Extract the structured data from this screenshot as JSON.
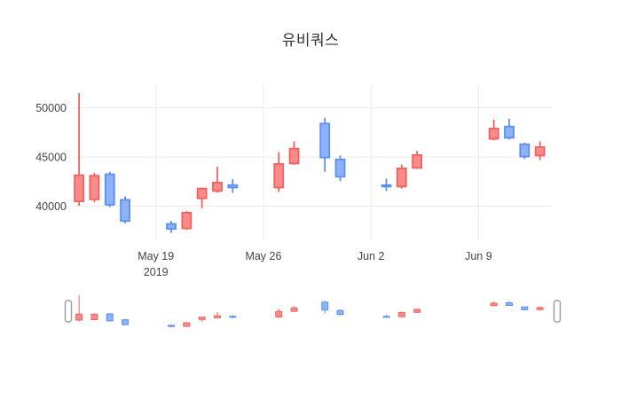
{
  "chart_data": {
    "type": "candlestick",
    "title": "유비쿼스",
    "x_axis": {
      "epoch": "2019-05-13",
      "min": "2019-05-13T15:30:00",
      "max": "2019-06-13T18:30:00",
      "ticks": [
        {
          "date": "2019-05-19",
          "label": "May 19",
          "sublabel": "2019"
        },
        {
          "date": "2019-05-26",
          "label": "May 26",
          "sublabel": ""
        },
        {
          "date": "2019-06-02",
          "label": "Jun 2",
          "sublabel": ""
        },
        {
          "date": "2019-06-09",
          "label": "Jun 9",
          "sublabel": ""
        }
      ]
    },
    "y_axis": {
      "min": 36450,
      "max": 52400,
      "ticks": [
        40000,
        45000,
        50000
      ]
    },
    "rangeslider": {
      "y_min": 37000,
      "y_max": 51800
    },
    "grid": true,
    "legend": "none",
    "ohlc": [
      {
        "date": "2019-05-14",
        "open": 40500,
        "high": 51500,
        "low": 40050,
        "close": 43150
      },
      {
        "date": "2019-05-15",
        "open": 40700,
        "high": 43400,
        "low": 40400,
        "close": 43100
      },
      {
        "date": "2019-05-16",
        "open": 43250,
        "high": 43500,
        "low": 39900,
        "close": 40150
      },
      {
        "date": "2019-05-17",
        "open": 40650,
        "high": 41000,
        "low": 38250,
        "close": 38500
      },
      {
        "date": "2019-05-20",
        "open": 38200,
        "high": 38500,
        "low": 37300,
        "close": 37700
      },
      {
        "date": "2019-05-21",
        "open": 37750,
        "high": 39500,
        "low": 37600,
        "close": 39350
      },
      {
        "date": "2019-05-22",
        "open": 40800,
        "high": 41900,
        "low": 39800,
        "close": 41800
      },
      {
        "date": "2019-05-23",
        "open": 41550,
        "high": 44000,
        "low": 41400,
        "close": 42400
      },
      {
        "date": "2019-05-24",
        "open": 42150,
        "high": 42750,
        "low": 41350,
        "close": 41900
      },
      {
        "date": "2019-05-27",
        "open": 41900,
        "high": 45500,
        "low": 41450,
        "close": 44300
      },
      {
        "date": "2019-05-28",
        "open": 44350,
        "high": 46600,
        "low": 44200,
        "close": 45850
      },
      {
        "date": "2019-05-30",
        "open": 48400,
        "high": 49000,
        "low": 43500,
        "close": 44950
      },
      {
        "date": "2019-05-31",
        "open": 44750,
        "high": 45150,
        "low": 42550,
        "close": 43000
      },
      {
        "date": "2019-06-03",
        "open": 42150,
        "high": 42800,
        "low": 41550,
        "close": 42000
      },
      {
        "date": "2019-06-04",
        "open": 42000,
        "high": 44250,
        "low": 41800,
        "close": 43850
      },
      {
        "date": "2019-06-05",
        "open": 43900,
        "high": 45600,
        "low": 43800,
        "close": 45200
      },
      {
        "date": "2019-06-10",
        "open": 46850,
        "high": 48800,
        "low": 46700,
        "close": 47900
      },
      {
        "date": "2019-06-11",
        "open": 48100,
        "high": 48900,
        "low": 46800,
        "close": 46950
      },
      {
        "date": "2019-06-12",
        "open": 46300,
        "high": 46450,
        "low": 44800,
        "close": 45050
      },
      {
        "date": "2019-06-13",
        "open": 45150,
        "high": 46600,
        "low": 44700,
        "close": 46000
      }
    ],
    "colors": {
      "increasing_line": "#f0625f",
      "increasing_fill": "#fb8b8a",
      "decreasing_line": "#5c8ff2",
      "decreasing_fill": "#8db2f7",
      "grid": "#ececec",
      "axis_text": "#444444",
      "title_text": "#333333",
      "handle_border": "#a0a0a0"
    }
  }
}
